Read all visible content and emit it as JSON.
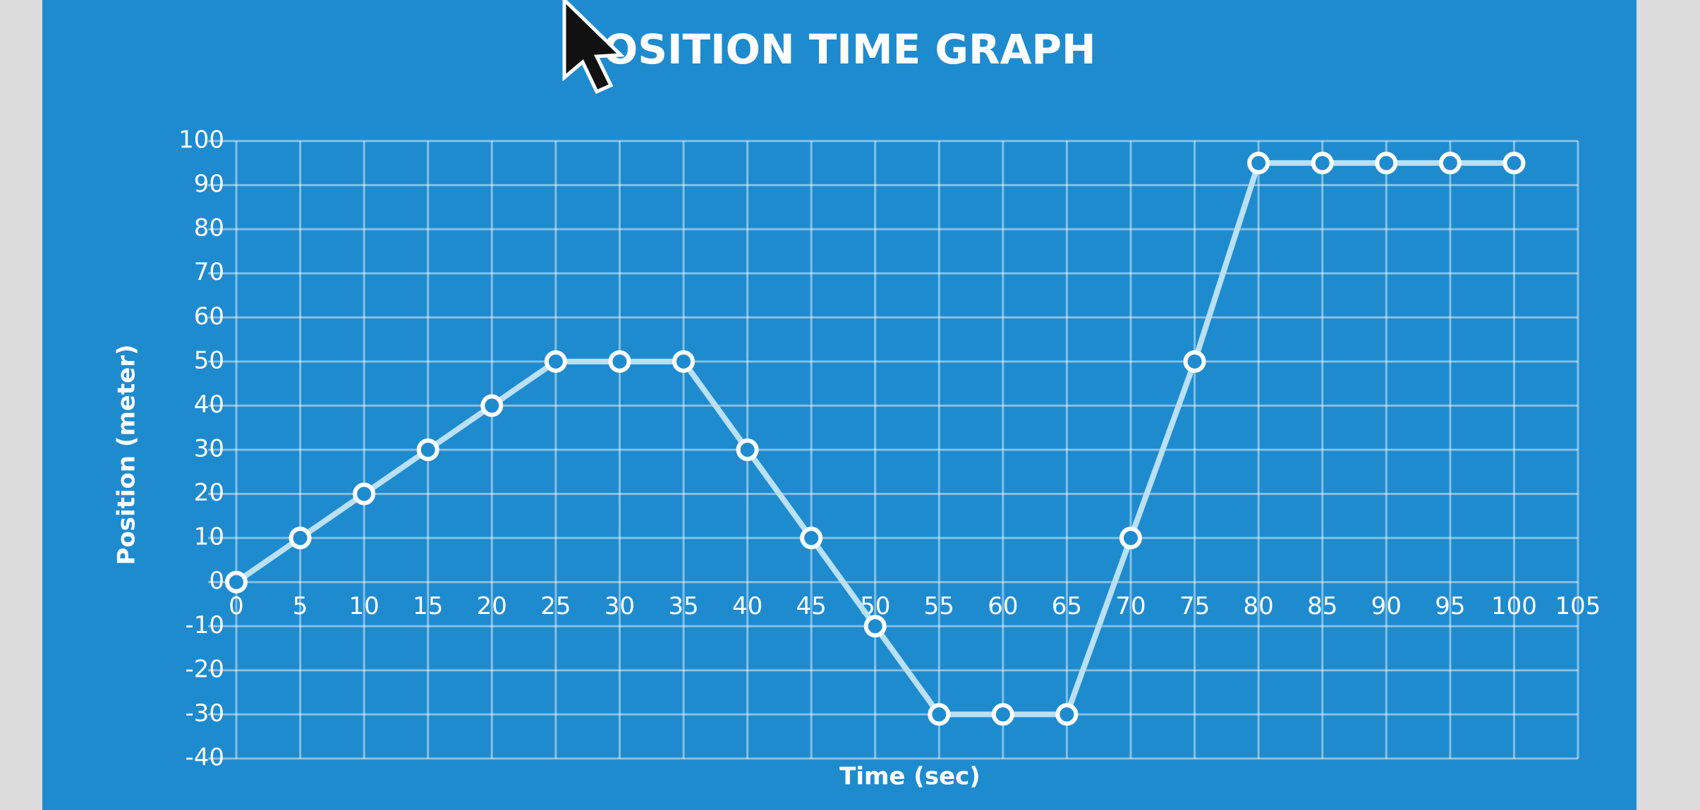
{
  "chart_data": {
    "type": "line",
    "title": "POSITION TIME GRAPH",
    "x_label": "Time (sec)",
    "y_label": "Position (meter)",
    "x": [
      0,
      5,
      10,
      15,
      20,
      25,
      30,
      35,
      40,
      45,
      50,
      55,
      60,
      65,
      70,
      75,
      80,
      85,
      90,
      95,
      100
    ],
    "values": [
      0,
      10,
      20,
      30,
      40,
      50,
      50,
      50,
      30,
      10,
      -10,
      -30,
      -30,
      -30,
      10,
      50,
      95,
      95,
      95,
      95,
      95
    ],
    "color": "#b9e0f5",
    "xlim": [
      0,
      105
    ],
    "xticks": [
      0,
      5,
      10,
      15,
      20,
      25,
      30,
      35,
      40,
      45,
      50,
      55,
      60,
      65,
      70,
      75,
      80,
      85,
      90,
      95,
      100,
      105
    ],
    "ylim": [
      -40,
      100
    ],
    "yticks": [
      -40,
      -30,
      -20,
      -10,
      0,
      10,
      20,
      30,
      40,
      50,
      60,
      70,
      80,
      90,
      100
    ],
    "grid": true
  }
}
